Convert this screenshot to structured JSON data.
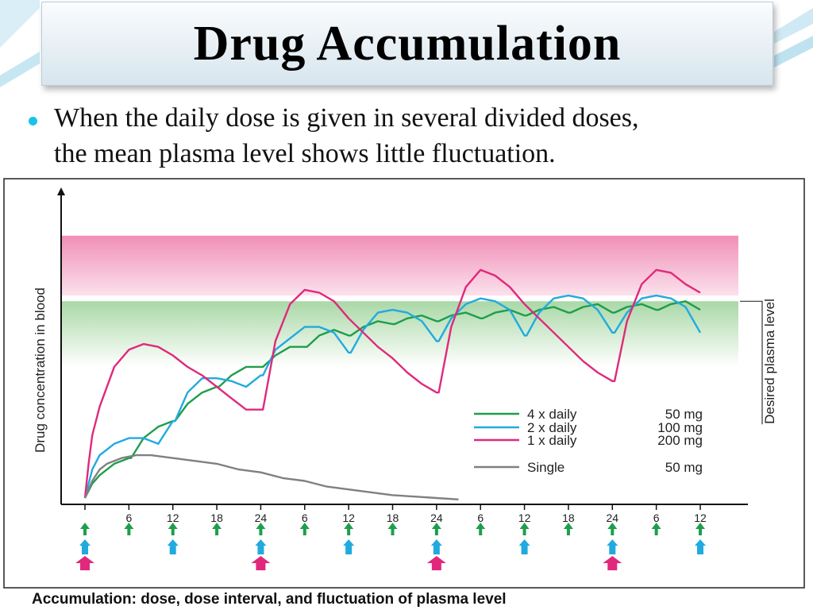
{
  "slide": {
    "title": "Drug Accumulation",
    "bullet_lines": [
      "When the daily dose is given in several divided doses,",
      "the mean plasma level shows little fluctuation."
    ]
  },
  "chart_data": {
    "type": "line",
    "ylabel": "Drug concentration in blood",
    "band_label": "Desired plasma level",
    "caption": "Accumulation: dose, dose interval, and fluctuation of plasma level",
    "x_unit": "hours",
    "x_ticks": [
      0,
      6,
      12,
      18,
      24,
      30,
      36,
      42,
      48,
      54,
      60,
      66,
      72,
      78,
      84
    ],
    "x_tick_labels": [
      "",
      "6",
      "12",
      "18",
      "24",
      "6",
      "12",
      "18",
      "24",
      "6",
      "12",
      "18",
      "24",
      "6",
      "12"
    ],
    "xlim": [
      0,
      84
    ],
    "ylim": [
      0,
      100
    ],
    "bands": [
      {
        "name": "above-desired",
        "from": 71,
        "to": 92,
        "color": "#f3a9c4"
      },
      {
        "name": "desired",
        "from": 46,
        "to": 69,
        "color": "#b9e0b6"
      }
    ],
    "legend": [
      {
        "label": "4 x daily",
        "dose": "50 mg",
        "color": "#1e9e4c"
      },
      {
        "label": "2 x daily",
        "dose": "100 mg",
        "color": "#22aadf"
      },
      {
        "label": "1 x daily",
        "dose": "200 mg",
        "color": "#e0297c"
      },
      {
        "label": "Single",
        "dose": "50 mg",
        "color": "#808080"
      }
    ],
    "series": [
      {
        "name": "4 x daily",
        "color": "#1e9e4c",
        "points": [
          [
            0,
            0
          ],
          [
            1,
            5
          ],
          [
            2,
            8
          ],
          [
            4,
            12
          ],
          [
            6,
            14
          ],
          [
            6.3,
            14
          ],
          [
            8,
            21
          ],
          [
            10,
            25
          ],
          [
            12,
            27
          ],
          [
            12.3,
            27
          ],
          [
            14,
            33
          ],
          [
            16,
            37
          ],
          [
            18,
            39
          ],
          [
            18.3,
            39
          ],
          [
            20,
            43
          ],
          [
            22,
            46
          ],
          [
            24,
            46
          ],
          [
            24.3,
            46
          ],
          [
            26,
            50
          ],
          [
            28,
            53
          ],
          [
            30,
            53
          ],
          [
            30.3,
            53
          ],
          [
            32,
            57
          ],
          [
            34,
            59
          ],
          [
            36,
            57
          ],
          [
            36.3,
            57
          ],
          [
            38,
            60
          ],
          [
            40,
            62
          ],
          [
            42,
            61
          ],
          [
            42.3,
            61
          ],
          [
            44,
            63
          ],
          [
            46,
            64
          ],
          [
            48,
            62
          ],
          [
            48.3,
            62
          ],
          [
            50,
            64
          ],
          [
            52,
            65
          ],
          [
            54,
            63
          ],
          [
            54.3,
            63
          ],
          [
            56,
            65
          ],
          [
            58,
            66
          ],
          [
            60,
            64
          ],
          [
            60.3,
            64
          ],
          [
            62,
            66
          ],
          [
            64,
            67
          ],
          [
            66,
            65
          ],
          [
            66.3,
            65
          ],
          [
            68,
            67
          ],
          [
            70,
            68
          ],
          [
            72,
            65
          ],
          [
            72.3,
            65
          ],
          [
            74,
            67
          ],
          [
            76,
            68
          ],
          [
            78,
            66
          ],
          [
            78.3,
            66
          ],
          [
            80,
            68
          ],
          [
            82,
            69
          ],
          [
            84,
            66
          ]
        ]
      },
      {
        "name": "2 x daily",
        "color": "#22aadf",
        "points": [
          [
            0,
            0
          ],
          [
            1,
            10
          ],
          [
            2,
            15
          ],
          [
            4,
            19
          ],
          [
            6,
            21
          ],
          [
            8,
            21
          ],
          [
            10,
            19
          ],
          [
            12,
            27
          ],
          [
            12.3,
            27
          ],
          [
            14,
            37
          ],
          [
            16,
            42
          ],
          [
            18,
            42
          ],
          [
            20,
            41
          ],
          [
            22,
            39
          ],
          [
            24,
            43
          ],
          [
            24.3,
            43
          ],
          [
            26,
            52
          ],
          [
            28,
            56
          ],
          [
            30,
            60
          ],
          [
            32,
            60
          ],
          [
            34,
            58
          ],
          [
            36,
            51
          ],
          [
            36.3,
            51
          ],
          [
            38,
            59
          ],
          [
            40,
            65
          ],
          [
            42,
            66
          ],
          [
            44,
            65
          ],
          [
            46,
            62
          ],
          [
            48,
            55
          ],
          [
            48.3,
            55
          ],
          [
            50,
            63
          ],
          [
            52,
            68
          ],
          [
            54,
            70
          ],
          [
            56,
            69
          ],
          [
            58,
            66
          ],
          [
            60,
            57
          ],
          [
            60.3,
            57
          ],
          [
            62,
            65
          ],
          [
            64,
            70
          ],
          [
            66,
            71
          ],
          [
            68,
            70
          ],
          [
            70,
            66
          ],
          [
            72,
            58
          ],
          [
            72.3,
            58
          ],
          [
            74,
            65
          ],
          [
            76,
            70
          ],
          [
            78,
            71
          ],
          [
            80,
            70
          ],
          [
            82,
            67
          ],
          [
            84,
            58
          ]
        ]
      },
      {
        "name": "1 x daily",
        "color": "#e0297c",
        "points": [
          [
            0,
            0
          ],
          [
            0.5,
            12
          ],
          [
            1,
            22
          ],
          [
            2,
            32
          ],
          [
            4,
            46
          ],
          [
            6,
            52
          ],
          [
            8,
            54
          ],
          [
            10,
            53
          ],
          [
            12,
            50
          ],
          [
            14,
            46
          ],
          [
            16,
            43
          ],
          [
            18,
            39
          ],
          [
            20,
            35
          ],
          [
            22,
            31
          ],
          [
            24,
            31
          ],
          [
            24.3,
            31
          ],
          [
            26,
            55
          ],
          [
            28,
            68
          ],
          [
            30,
            73
          ],
          [
            32,
            72
          ],
          [
            34,
            69
          ],
          [
            36,
            63
          ],
          [
            38,
            58
          ],
          [
            40,
            53
          ],
          [
            42,
            49
          ],
          [
            44,
            44
          ],
          [
            46,
            40
          ],
          [
            48,
            37
          ],
          [
            48.3,
            37
          ],
          [
            50,
            60
          ],
          [
            52,
            74
          ],
          [
            54,
            80
          ],
          [
            56,
            78
          ],
          [
            58,
            74
          ],
          [
            60,
            68
          ],
          [
            62,
            63
          ],
          [
            64,
            58
          ],
          [
            66,
            53
          ],
          [
            68,
            48
          ],
          [
            70,
            44
          ],
          [
            72,
            41
          ],
          [
            72.3,
            41
          ],
          [
            74,
            62
          ],
          [
            76,
            75
          ],
          [
            78,
            80
          ],
          [
            80,
            79
          ],
          [
            82,
            75
          ],
          [
            84,
            72
          ]
        ]
      },
      {
        "name": "Single",
        "color": "#808080",
        "points": [
          [
            0,
            0
          ],
          [
            1,
            6
          ],
          [
            2,
            10
          ],
          [
            3,
            12
          ],
          [
            5,
            14
          ],
          [
            7,
            15
          ],
          [
            9,
            15
          ],
          [
            12,
            14
          ],
          [
            15,
            13
          ],
          [
            18,
            12
          ],
          [
            21,
            10
          ],
          [
            24,
            9
          ],
          [
            27,
            7
          ],
          [
            30,
            6
          ],
          [
            33,
            4
          ],
          [
            36,
            3
          ],
          [
            39,
            2
          ],
          [
            42,
            1
          ],
          [
            45,
            0.5
          ],
          [
            48,
            0
          ],
          [
            51,
            -0.5
          ]
        ]
      }
    ],
    "dose_markers": [
      {
        "series": "4 x daily",
        "color": "#1e9e4c",
        "x": [
          0,
          6,
          12,
          18,
          24,
          30,
          36,
          42,
          48,
          54,
          60,
          66,
          72,
          78,
          84
        ]
      },
      {
        "series": "2 x daily",
        "color": "#22aadf",
        "x": [
          0,
          12,
          24,
          36,
          48,
          60,
          72,
          84
        ]
      },
      {
        "series": "1 x daily",
        "color": "#e0297c",
        "x": [
          0,
          24,
          48,
          72
        ]
      }
    ]
  }
}
